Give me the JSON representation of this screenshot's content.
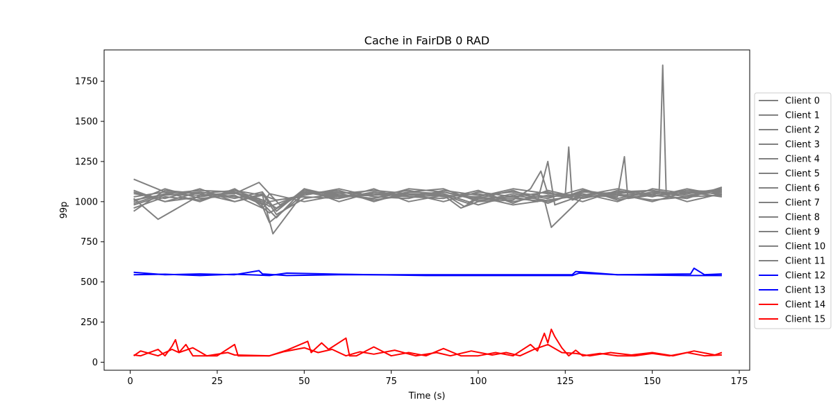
{
  "chart_data": {
    "type": "line",
    "title": "Cache in  FairDB 0 RAD",
    "xlabel": "Time (s)",
    "ylabel": "99p",
    "xlim": [
      -7.5,
      178
    ],
    "ylim": [
      -50,
      1945
    ],
    "xticks": [
      0,
      25,
      50,
      75,
      100,
      125,
      150,
      175
    ],
    "yticks": [
      0,
      250,
      500,
      750,
      1000,
      1250,
      1500,
      1750
    ],
    "grid": false,
    "legend_position": "right",
    "colors": {
      "grey": "#808080",
      "blue": "#0000ff",
      "red": "#ff0000"
    },
    "series": [
      {
        "name": "Client 0",
        "color": "#808080",
        "x": [
          1,
          10,
          20,
          30,
          36,
          40,
          50,
          60,
          70,
          80,
          90,
          95,
          100,
          110,
          115,
          118,
          120,
          125,
          126,
          127,
          130,
          140,
          150,
          160,
          170
        ],
        "y": [
          1010,
          1045,
          1040,
          1055,
          1000,
          930,
          1060,
          1030,
          1040,
          1050,
          1040,
          960,
          1000,
          1010,
          1080,
          1190,
          1050,
          1040,
          1340,
          1010,
          1030,
          1040,
          1050,
          1060,
          1050
        ]
      },
      {
        "name": "Client 1",
        "color": "#808080",
        "x": [
          1,
          10,
          20,
          30,
          38,
          42,
          50,
          60,
          70,
          80,
          90,
          96,
          100,
          110,
          117,
          120,
          122,
          130,
          140,
          142,
          143,
          150,
          152,
          153,
          154,
          160,
          170
        ],
        "y": [
          1140,
          1060,
          1050,
          1070,
          1010,
          960,
          1070,
          1040,
          1020,
          1060,
          1050,
          970,
          1020,
          1030,
          1000,
          1250,
          980,
          1040,
          1030,
          1280,
          1020,
          1040,
          1060,
          1850,
          1050,
          1070,
          1060
        ]
      },
      {
        "name": "Client 2",
        "color": "#808080",
        "x": [
          1,
          10,
          20,
          30,
          38,
          41,
          50,
          60,
          70,
          80,
          90,
          100,
          110,
          120,
          130,
          140,
          150,
          160,
          170
        ],
        "y": [
          960,
          1030,
          1010,
          1070,
          1040,
          800,
          1060,
          1050,
          1010,
          1040,
          1060,
          1010,
          1020,
          1000,
          1060,
          1050,
          1000,
          1060,
          1070
        ]
      },
      {
        "name": "Client 3",
        "color": "#808080",
        "x": [
          1,
          10,
          20,
          30,
          38,
          42,
          50,
          60,
          70,
          80,
          90,
          97,
          100,
          110,
          120,
          130,
          140,
          150,
          160,
          170
        ],
        "y": [
          990,
          1050,
          1070,
          1060,
          990,
          900,
          1080,
          1030,
          1050,
          1030,
          1040,
          990,
          1030,
          980,
          1010,
          1040,
          1060,
          1040,
          1050,
          1080
        ]
      },
      {
        "name": "Client 4",
        "color": "#808080",
        "x": [
          1,
          10,
          20,
          30,
          37,
          40,
          50,
          60,
          70,
          80,
          90,
          100,
          110,
          120,
          125,
          130,
          140,
          150,
          160,
          170
        ],
        "y": [
          1070,
          1000,
          1060,
          1030,
          1020,
          870,
          1050,
          1060,
          1040,
          1070,
          1030,
          1050,
          1000,
          1040,
          1030,
          1070,
          1020,
          1060,
          1030,
          1040
        ]
      },
      {
        "name": "Client 5",
        "color": "#808080",
        "x": [
          1,
          8,
          20,
          30,
          37,
          43,
          50,
          60,
          70,
          80,
          90,
          100,
          110,
          119,
          121,
          130,
          140,
          150,
          160,
          170
        ],
        "y": [
          1020,
          890,
          1040,
          1050,
          1120,
          980,
          1060,
          1020,
          1060,
          1040,
          1050,
          980,
          1040,
          1010,
          840,
          1030,
          1050,
          1070,
          1040,
          1060
        ]
      },
      {
        "name": "Client 6",
        "color": "#808080",
        "x": [
          1,
          10,
          20,
          30,
          38,
          40,
          50,
          60,
          70,
          80,
          90,
          100,
          110,
          120,
          130,
          140,
          150,
          160,
          170
        ],
        "y": [
          1000,
          1080,
          1020,
          1040,
          960,
          1000,
          1040,
          1080,
          1030,
          1020,
          1070,
          1040,
          1060,
          1030,
          1050,
          1000,
          1080,
          1050,
          1070
        ]
      },
      {
        "name": "Client 7",
        "color": "#808080",
        "x": [
          1,
          10,
          20,
          30,
          38,
          42,
          50,
          60,
          70,
          80,
          90,
          100,
          110,
          120,
          130,
          140,
          150,
          160,
          170
        ],
        "y": [
          1050,
          1020,
          1080,
          1000,
          1050,
          920,
          1020,
          1050,
          1070,
          1050,
          1000,
          1060,
          1030,
          1060,
          1000,
          1070,
          1030,
          1080,
          1040
        ]
      },
      {
        "name": "Client 8",
        "color": "#808080",
        "x": [
          1,
          10,
          20,
          30,
          38,
          40,
          50,
          60,
          70,
          80,
          90,
          100,
          110,
          120,
          130,
          140,
          150,
          160,
          170
        ],
        "y": [
          1030,
          1060,
          1000,
          1080,
          980,
          1050,
          1000,
          1040,
          1020,
          1080,
          1060,
          1020,
          1070,
          990,
          1070,
          1040,
          1010,
          1030,
          1080
        ]
      },
      {
        "name": "Client 9",
        "color": "#808080",
        "x": [
          1,
          10,
          20,
          30,
          38,
          42,
          50,
          60,
          70,
          80,
          90,
          100,
          110,
          120,
          130,
          140,
          150,
          160,
          170
        ],
        "y": [
          980,
          1040,
          1060,
          1020,
          1060,
          940,
          1080,
          1000,
          1060,
          1030,
          1020,
          1070,
          990,
          1070,
          1020,
          1060,
          1070,
          1000,
          1050
        ]
      },
      {
        "name": "Client 10",
        "color": "#808080",
        "x": [
          1,
          10,
          20,
          30,
          38,
          40,
          50,
          60,
          70,
          80,
          90,
          100,
          110,
          120,
          130,
          140,
          150,
          160,
          170
        ],
        "y": [
          1060,
          1000,
          1030,
          1060,
          1000,
          970,
          1050,
          1070,
          1000,
          1060,
          1080,
          1000,
          1050,
          1020,
          1080,
          1010,
          1050,
          1060,
          1030
        ]
      },
      {
        "name": "Client 11",
        "color": "#808080",
        "x": [
          1,
          10,
          20,
          30,
          38,
          42,
          50,
          60,
          70,
          80,
          90,
          100,
          110,
          120,
          130,
          140,
          150,
          160,
          170
        ],
        "y": [
          940,
          1070,
          1050,
          1000,
          1040,
          1010,
          1030,
          1020,
          1080,
          1000,
          1040,
          1030,
          1080,
          1050,
          1040,
          1080,
          1040,
          1020,
          1090
        ]
      },
      {
        "name": "Client 12",
        "color": "#0000ff",
        "x": [
          1,
          10,
          20,
          30,
          37,
          38,
          45,
          60,
          85,
          100,
          127,
          128,
          140,
          161,
          162,
          165,
          170
        ],
        "y": [
          560,
          545,
          550,
          545,
          570,
          550,
          540,
          545,
          545,
          545,
          545,
          565,
          545,
          550,
          585,
          545,
          550
        ]
      },
      {
        "name": "Client 13",
        "color": "#0000ff",
        "x": [
          1,
          10,
          20,
          30,
          40,
          45,
          60,
          70,
          85,
          100,
          127,
          129,
          140,
          160,
          170
        ],
        "y": [
          545,
          548,
          540,
          548,
          540,
          555,
          548,
          545,
          540,
          540,
          540,
          555,
          545,
          540,
          540
        ]
      },
      {
        "name": "Client 15",
        "color": "#ff0000",
        "x": [
          1,
          3,
          8,
          10,
          12,
          13,
          14,
          16,
          18,
          20,
          25,
          30,
          31,
          40,
          45,
          51,
          52,
          55,
          57,
          62,
          63,
          65,
          70,
          75,
          80,
          85,
          90,
          95,
          100,
          105,
          110,
          115,
          117,
          119,
          120,
          121,
          122,
          124,
          126,
          128,
          130,
          135,
          140,
          145,
          150,
          155,
          160,
          165,
          170
        ],
        "y": [
          45,
          40,
          80,
          40,
          100,
          140,
          60,
          110,
          40,
          40,
          40,
          110,
          40,
          40,
          75,
          130,
          60,
          120,
          80,
          150,
          40,
          40,
          95,
          40,
          60,
          40,
          85,
          40,
          40,
          60,
          40,
          110,
          70,
          180,
          120,
          205,
          160,
          90,
          40,
          75,
          40,
          55,
          40,
          40,
          55,
          40,
          60,
          40,
          45
        ]
      },
      {
        "name": "Client 14",
        "color": "#ff0000",
        "x": [
          1,
          3,
          8,
          12,
          14,
          18,
          22,
          28,
          30,
          40,
          44,
          50,
          54,
          58,
          62,
          66,
          70,
          76,
          82,
          88,
          92,
          98,
          104,
          108,
          112,
          116,
          120,
          124,
          128,
          132,
          138,
          144,
          150,
          156,
          162,
          168,
          170
        ],
        "y": [
          40,
          70,
          40,
          80,
          60,
          90,
          40,
          60,
          45,
          40,
          65,
          90,
          60,
          80,
          40,
          65,
          50,
          75,
          40,
          60,
          40,
          70,
          45,
          60,
          40,
          80,
          110,
          60,
          55,
          40,
          60,
          45,
          60,
          40,
          70,
          45,
          60
        ]
      }
    ],
    "legend": [
      "Client 0",
      "Client 1",
      "Client 2",
      "Client 3",
      "Client 4",
      "Client 5",
      "Client 6",
      "Client 7",
      "Client 8",
      "Client 9",
      "Client 10",
      "Client 11",
      "Client 12",
      "Client 13",
      "Client 14",
      "Client 15"
    ]
  }
}
